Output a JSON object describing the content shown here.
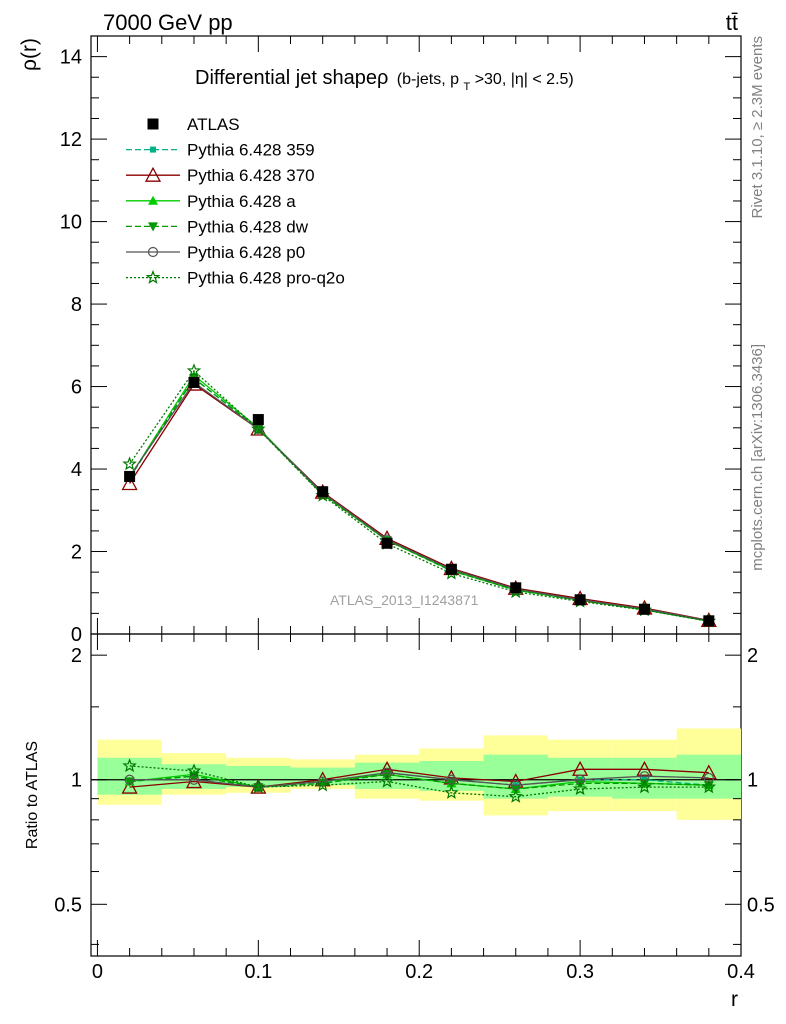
{
  "header": {
    "left": "7000 GeV pp",
    "right": "tt̄"
  },
  "side_labels": {
    "rivet": "Rivet 3.1.10, ≥ 2.3M events",
    "mcplots": "mcplots.cern.ch [arXiv:1306.3436]"
  },
  "colors": {
    "data": "#000000",
    "p359": "#00b386",
    "p370": "#8b0000",
    "pa": "#00cc00",
    "pdw": "#009900",
    "pp0": "#555555",
    "pq2o": "#007700",
    "band_outer": "#ffff99",
    "band_inner": "#99ff99"
  },
  "chart_data": [
    {
      "type": "line",
      "title": "Differential jet shapeρ (b-jets, p_T>30, |η| < 2.5)",
      "title_main": "Differential jet shapeρ",
      "title_sub": "(b-jets, p",
      "title_sub_index": "T",
      "title_sub_rest": ">30, |η| < 2.5)",
      "ylabel": "ρ(r)",
      "xlabel": "r",
      "watermark": "ATLAS_2013_I1243871",
      "xlim": [
        -0.004,
        0.4
      ],
      "ylim": [
        0,
        14.5
      ],
      "yticks": [
        0,
        2,
        4,
        6,
        8,
        10,
        12,
        14
      ],
      "ytick_labels": [
        "0",
        "2",
        "4",
        "6",
        "8",
        "10",
        "12",
        "14"
      ],
      "grid": false,
      "legend_position": "top-left",
      "x": [
        0.02,
        0.06,
        0.1,
        0.14,
        0.18,
        0.22,
        0.26,
        0.3,
        0.34,
        0.38
      ],
      "data": {
        "name": "ATLAS",
        "values": [
          3.82,
          6.1,
          5.2,
          3.45,
          2.2,
          1.57,
          1.12,
          0.83,
          0.6,
          0.32
        ]
      },
      "series": [
        {
          "name": "Pythia 6.428 359",
          "key": "p359",
          "values": [
            3.78,
            6.2,
            4.97,
            3.38,
            2.3,
            1.58,
            1.09,
            0.83,
            0.6,
            0.31
          ]
        },
        {
          "name": "Pythia 6.428 370",
          "key": "p370",
          "values": [
            3.65,
            6.06,
            4.97,
            3.44,
            2.32,
            1.59,
            1.11,
            0.86,
            0.63,
            0.33
          ]
        },
        {
          "name": "Pythia 6.428 a",
          "key": "pa",
          "values": [
            3.8,
            6.27,
            5.0,
            3.4,
            2.27,
            1.54,
            1.06,
            0.82,
            0.59,
            0.31
          ]
        },
        {
          "name": "Pythia 6.428 dw",
          "key": "pdw",
          "values": [
            3.79,
            6.2,
            4.97,
            3.38,
            2.27,
            1.53,
            1.07,
            0.81,
            0.59,
            0.31
          ]
        },
        {
          "name": "Pythia 6.428 p0",
          "key": "pp0",
          "values": [
            3.82,
            6.1,
            4.97,
            3.42,
            2.29,
            1.57,
            1.09,
            0.83,
            0.61,
            0.32
          ]
        },
        {
          "name": "Pythia 6.428 pro-q2o",
          "key": "pq2o",
          "values": [
            4.12,
            6.38,
            4.97,
            3.36,
            2.19,
            1.47,
            1.02,
            0.79,
            0.58,
            0.31
          ]
        }
      ]
    },
    {
      "type": "line",
      "ylabel": "Ratio to ATLAS",
      "xlabel": "r",
      "xlim": [
        -0.004,
        0.4
      ],
      "ylim": [
        0.375,
        2.25
      ],
      "xticks": [
        0,
        0.1,
        0.2,
        0.3,
        0.4
      ],
      "xtick_labels": [
        "0",
        "0.1",
        "0.2",
        "0.3",
        "0.4"
      ],
      "yticks": [
        0.5,
        1,
        2
      ],
      "ytick_labels": [
        "0.5",
        "1",
        "2"
      ],
      "bin_edges": [
        0,
        0.04,
        0.08,
        0.12,
        0.16,
        0.2,
        0.24,
        0.28,
        0.32,
        0.36,
        0.4
      ],
      "band_outer": [
        [
          0.87,
          1.25
        ],
        [
          0.92,
          1.16
        ],
        [
          0.93,
          1.13
        ],
        [
          0.95,
          1.12
        ],
        [
          0.9,
          1.15
        ],
        [
          0.89,
          1.19
        ],
        [
          0.82,
          1.28
        ],
        [
          0.84,
          1.25
        ],
        [
          0.84,
          1.25
        ],
        [
          0.8,
          1.33
        ]
      ],
      "band_inner": [
        [
          0.92,
          1.13
        ],
        [
          0.95,
          1.09
        ],
        [
          0.96,
          1.08
        ],
        [
          0.97,
          1.07
        ],
        [
          0.95,
          1.1
        ],
        [
          0.94,
          1.11
        ],
        [
          0.9,
          1.15
        ],
        [
          0.91,
          1.13
        ],
        [
          0.9,
          1.13
        ],
        [
          0.9,
          1.15
        ]
      ],
      "x": [
        0.02,
        0.06,
        0.1,
        0.14,
        0.18,
        0.22,
        0.26,
        0.3,
        0.34,
        0.38
      ],
      "series": [
        {
          "name": "Pythia 6.428 359",
          "key": "p359",
          "values": [
            0.99,
            1.02,
            0.96,
            0.98,
            1.04,
            1.0,
            0.97,
            1.0,
            1.0,
            0.97
          ]
        },
        {
          "name": "Pythia 6.428 370",
          "key": "p370",
          "values": [
            0.96,
            0.99,
            0.96,
            1.0,
            1.06,
            1.01,
            0.99,
            1.06,
            1.06,
            1.04
          ]
        },
        {
          "name": "Pythia 6.428 a",
          "key": "pa",
          "values": [
            0.99,
            1.03,
            0.96,
            0.99,
            1.03,
            0.98,
            0.95,
            0.99,
            0.98,
            0.97
          ]
        },
        {
          "name": "Pythia 6.428 dw",
          "key": "pdw",
          "values": [
            0.99,
            1.02,
            0.96,
            0.98,
            1.03,
            0.98,
            0.95,
            0.98,
            0.98,
            0.97
          ]
        },
        {
          "name": "Pythia 6.428 p0",
          "key": "pp0",
          "values": [
            1.0,
            1.0,
            0.96,
            0.99,
            1.04,
            1.0,
            0.97,
            1.0,
            1.02,
            1.01
          ]
        },
        {
          "name": "Pythia 6.428 pro-q2o",
          "key": "pq2o",
          "values": [
            1.08,
            1.05,
            0.96,
            0.97,
            0.99,
            0.93,
            0.91,
            0.95,
            0.96,
            0.96
          ]
        }
      ]
    }
  ]
}
